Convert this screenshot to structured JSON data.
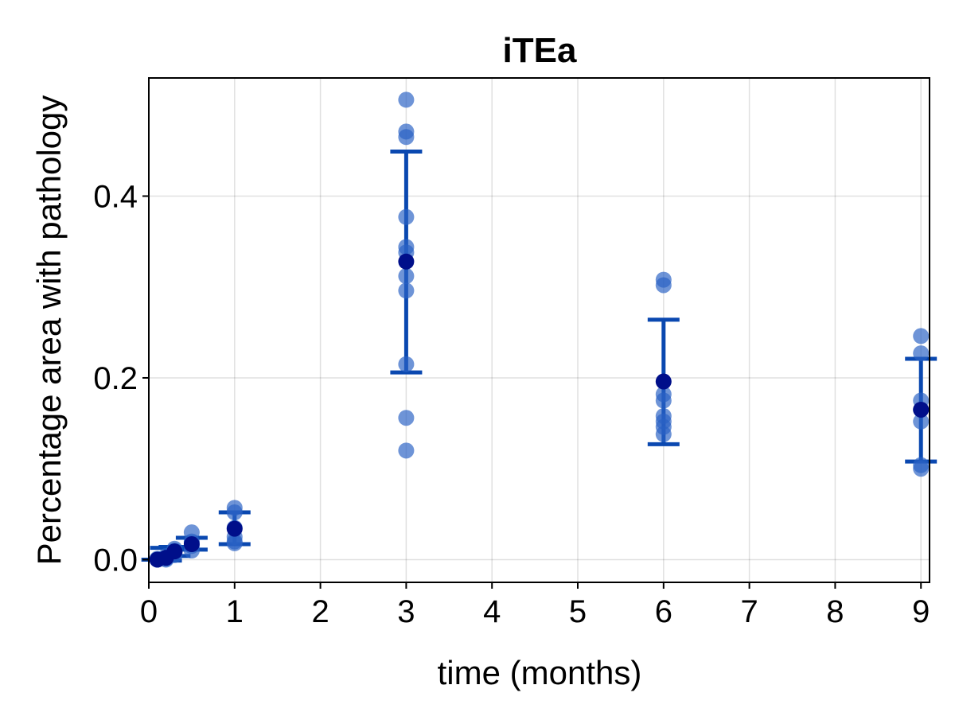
{
  "chart_data": {
    "type": "scatter",
    "title": "iTEa",
    "xlabel": "time (months)",
    "ylabel": "Percentage area with pathology",
    "xlim": [
      0,
      9.1
    ],
    "ylim": [
      -0.025,
      0.53
    ],
    "xticks": [
      0,
      1,
      2,
      3,
      4,
      5,
      6,
      7,
      8,
      9
    ],
    "yticks": [
      0.0,
      0.2,
      0.4
    ],
    "ytick_labels": [
      "0.0",
      "0.2",
      "0.4"
    ],
    "grid": true,
    "colors": {
      "points": "#2a62c4",
      "mean": "#000f8a",
      "errorbar": "#0a48b0"
    },
    "observations": [
      {
        "x": 0.1,
        "values": [
          0.0,
          0.0,
          0.001,
          0.0,
          0.0
        ]
      },
      {
        "x": 0.2,
        "values": [
          0.0,
          0.002,
          0.004,
          0.001
        ]
      },
      {
        "x": 0.3,
        "values": [
          0.008,
          0.012,
          0.005,
          0.01
        ]
      },
      {
        "x": 0.5,
        "values": [
          0.01,
          0.015,
          0.02,
          0.03,
          0.018
        ]
      },
      {
        "x": 1,
        "values": [
          0.057,
          0.052,
          0.035,
          0.025,
          0.02,
          0.018
        ]
      },
      {
        "x": 3,
        "values": [
          0.506,
          0.471,
          0.465,
          0.377,
          0.344,
          0.338,
          0.312,
          0.296,
          0.215,
          0.156,
          0.12
        ]
      },
      {
        "x": 6,
        "values": [
          0.308,
          0.302,
          0.182,
          0.175,
          0.158,
          0.152,
          0.146,
          0.138
        ]
      },
      {
        "x": 9,
        "values": [
          0.246,
          0.227,
          0.175,
          0.165,
          0.152,
          0.104,
          0.1
        ]
      }
    ],
    "summary": [
      {
        "x": 0.1,
        "mean": 0.0,
        "lower": 0.0,
        "upper": 0.0
      },
      {
        "x": 0.2,
        "mean": 0.002,
        "lower": -0.001,
        "upper": 0.013
      },
      {
        "x": 0.3,
        "mean": 0.009,
        "lower": 0.004,
        "upper": 0.014
      },
      {
        "x": 0.5,
        "mean": 0.017,
        "lower": 0.011,
        "upper": 0.024
      },
      {
        "x": 1,
        "mean": 0.034,
        "lower": 0.017,
        "upper": 0.052
      },
      {
        "x": 3,
        "mean": 0.328,
        "lower": 0.206,
        "upper": 0.449
      },
      {
        "x": 6,
        "mean": 0.196,
        "lower": 0.127,
        "upper": 0.264
      },
      {
        "x": 9,
        "mean": 0.165,
        "lower": 0.108,
        "upper": 0.221
      }
    ]
  }
}
